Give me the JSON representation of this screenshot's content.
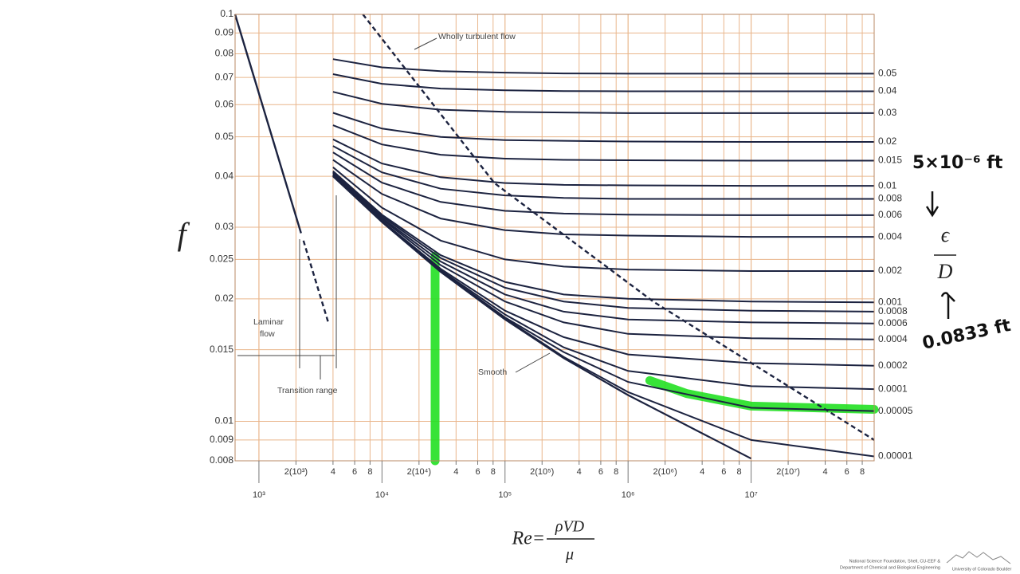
{
  "chart_data": {
    "type": "line",
    "log_x": true,
    "log_y": true,
    "grid": true,
    "xlim": [
      640,
      100000000
    ],
    "ylim": [
      0.008,
      0.1
    ],
    "yticks": [
      0.008,
      0.009,
      0.01,
      0.015,
      0.02,
      0.025,
      0.03,
      0.04,
      0.05,
      0.06,
      0.07,
      0.08,
      0.09,
      0.1
    ],
    "xticks": [
      {
        "value": 1000,
        "label": "10³"
      },
      {
        "value": 10000,
        "label": "10⁴"
      },
      {
        "value": 100000,
        "label": "10⁵"
      },
      {
        "value": 1000000,
        "label": "10⁶"
      },
      {
        "value": 10000000,
        "label": "10⁷"
      }
    ],
    "xticks_minor": [
      {
        "value": 2000,
        "label": "2(10³)"
      },
      {
        "value": 4000,
        "label": "4"
      },
      {
        "value": 6000,
        "label": "6"
      },
      {
        "value": 8000,
        "label": "8"
      },
      {
        "value": 20000,
        "label": "2(10⁴)"
      },
      {
        "value": 40000,
        "label": "4"
      },
      {
        "value": 60000,
        "label": "6"
      },
      {
        "value": 80000,
        "label": "8"
      },
      {
        "value": 200000,
        "label": "2(10⁵)"
      },
      {
        "value": 400000,
        "label": "4"
      },
      {
        "value": 600000,
        "label": "6"
      },
      {
        "value": 800000,
        "label": "8"
      },
      {
        "value": 2000000,
        "label": "2(10⁶)"
      },
      {
        "value": 4000000,
        "label": "4"
      },
      {
        "value": 6000000,
        "label": "6"
      },
      {
        "value": 8000000,
        "label": "8"
      },
      {
        "value": 20000000,
        "label": "2(10⁷)"
      },
      {
        "value": 40000000,
        "label": "4"
      },
      {
        "value": 60000000,
        "label": "6"
      },
      {
        "value": 80000000,
        "label": "8"
      }
    ],
    "ylabel": "f",
    "xlabel": {
      "lhs": "Re=",
      "numerator": "ρVD",
      "denominator": "μ"
    },
    "color": "#1c2340",
    "x": [
      4000,
      10000,
      30000,
      100000,
      300000,
      1000000,
      10000000,
      100000000
    ],
    "series": [
      {
        "name": "0.05",
        "values": [
          0.0776,
          0.0741,
          0.0725,
          0.0719,
          0.0716,
          0.0715,
          0.0715,
          0.0715
        ]
      },
      {
        "name": "0.04",
        "values": [
          0.0713,
          0.0675,
          0.0657,
          0.0651,
          0.0648,
          0.0647,
          0.0647,
          0.0647
        ]
      },
      {
        "name": "0.03",
        "values": [
          0.0645,
          0.0603,
          0.0583,
          0.0576,
          0.0574,
          0.0572,
          0.0572,
          0.0572
        ]
      },
      {
        "name": "0.02",
        "values": [
          0.0573,
          0.0524,
          0.05,
          0.0491,
          0.0489,
          0.0487,
          0.0486,
          0.0486
        ]
      },
      {
        "name": "0.015",
        "values": [
          0.0534,
          0.0479,
          0.0452,
          0.0442,
          0.0439,
          0.0438,
          0.0437,
          0.0437
        ]
      },
      {
        "name": "0.01",
        "values": [
          0.0493,
          0.043,
          0.0398,
          0.0385,
          0.0381,
          0.038,
          0.0379,
          0.0379
        ]
      },
      {
        "name": "0.008",
        "values": [
          0.0475,
          0.0409,
          0.0373,
          0.0359,
          0.0354,
          0.0352,
          0.0352,
          0.0352
        ]
      },
      {
        "name": "0.006",
        "values": [
          0.0458,
          0.0386,
          0.0346,
          0.0329,
          0.0324,
          0.0322,
          0.0321,
          0.0321
        ]
      },
      {
        "name": "0.004",
        "values": [
          0.0439,
          0.0362,
          0.0315,
          0.0295,
          0.0288,
          0.0286,
          0.0284,
          0.0284
        ]
      },
      {
        "name": "0.002",
        "values": [
          0.0421,
          0.0335,
          0.0278,
          0.025,
          0.024,
          0.0236,
          0.0234,
          0.0234
        ]
      },
      {
        "name": "0.001",
        "values": [
          0.0412,
          0.0322,
          0.0256,
          0.022,
          0.0205,
          0.02,
          0.0197,
          0.0196
        ]
      },
      {
        "name": "0.0008",
        "values": [
          0.041,
          0.0319,
          0.0252,
          0.0213,
          0.0197,
          0.019,
          0.0187,
          0.0186
        ]
      },
      {
        "name": "0.0006",
        "values": [
          0.0408,
          0.0316,
          0.0247,
          0.0205,
          0.0186,
          0.0178,
          0.0175,
          0.0174
        ]
      },
      {
        "name": "0.0004",
        "values": [
          0.0405,
          0.0314,
          0.0242,
          0.0197,
          0.0175,
          0.0164,
          0.016,
          0.0159
        ]
      },
      {
        "name": "0.0002",
        "values": [
          0.0403,
          0.0311,
          0.0237,
          0.0187,
          0.0161,
          0.0146,
          0.0139,
          0.0137
        ]
      },
      {
        "name": "0.0001",
        "values": [
          0.0402,
          0.031,
          0.0235,
          0.0183,
          0.0152,
          0.0133,
          0.0122,
          0.012
        ]
      },
      {
        "name": "0.00005",
        "values": [
          0.0401,
          0.0309,
          0.0234,
          0.018,
          0.0148,
          0.0125,
          0.0108,
          0.0106
        ]
      },
      {
        "name": "0.00001",
        "values": [
          0.0401,
          0.0309,
          0.0233,
          0.0179,
          0.0144,
          0.0118,
          0.009,
          0.0082
        ]
      }
    ],
    "smooth": {
      "name": "Smooth",
      "values": [
        0.04,
        0.0309,
        0.0233,
        0.0178,
        0.0143,
        0.0116,
        0.0081,
        null
      ]
    },
    "reference_lines": [
      {
        "x": [
          640,
          2200
        ],
        "values": [
          0.1,
          0.029
        ],
        "dash": false
      },
      {
        "x": [
          2300,
          3700
        ],
        "values": [
          0.0278,
          0.0173
        ],
        "dash": true
      },
      {
        "x": [
          7000,
          82000,
          1600000,
          100000000
        ],
        "values": [
          0.1,
          0.0385,
          0.0197,
          0.009
        ],
        "dash": true
      }
    ],
    "highlights": [
      {
        "color": "#22e022",
        "x": [
          27000,
          27000
        ],
        "values": [
          0.008,
          0.0255
        ]
      },
      {
        "color": "#22e022",
        "x": [
          1500000,
          3000000,
          10000000,
          100000000
        ],
        "values": [
          0.0126,
          0.0117,
          0.0109,
          0.0107
        ]
      }
    ],
    "annotations": {
      "wholly_turbulent": "Wholly turbulent flow",
      "laminar": [
        "Laminar",
        "flow"
      ],
      "transition": "Transition range"
    },
    "notes": {
      "roughness": "5×10⁻⁶ ft",
      "ratio_num": "ϵ",
      "ratio_den": "D",
      "diameter": "0.0833 ft"
    }
  },
  "footer": {
    "sponsors": [
      "National Science Foundation, Shell, CU-EEF &",
      "Department of Chemical and Biological Engineering"
    ],
    "university": "University of Colorado Boulder"
  }
}
